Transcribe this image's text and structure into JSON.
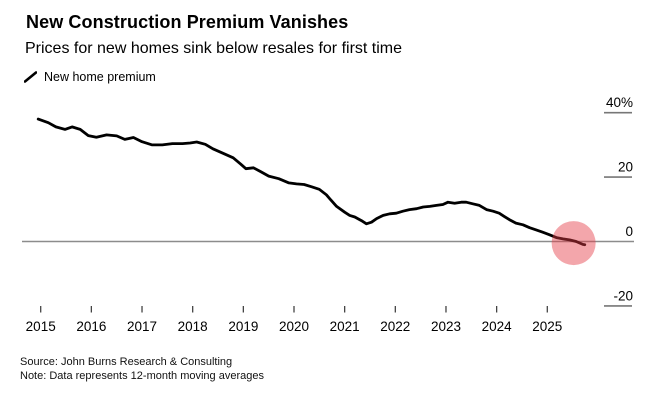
{
  "header": {
    "title": "New Construction Premium Vanishes",
    "subtitle": "Prices for new homes sink below resales for first time"
  },
  "legend": {
    "label": "New home premium",
    "marker": "diagonal-line-swatch"
  },
  "footer": {
    "source": "Source: John Burns Research & Consulting",
    "note": "Note: Data represents 12-month moving averages"
  },
  "colors": {
    "line": "#000000",
    "zero_line": "#8c8c8c",
    "axis_tick": "#444444",
    "y_tick": "#777777",
    "text": "#000000",
    "highlight_fill": "rgba(228,58,69,0.45)"
  },
  "chart_data": {
    "type": "line",
    "series_name": "New home premium",
    "unit": "%",
    "x": [
      2014.95,
      2015.15,
      2015.3,
      2015.48,
      2015.62,
      2015.78,
      2015.94,
      2016.1,
      2016.3,
      2016.5,
      2016.66,
      2016.83,
      2017.0,
      2017.2,
      2017.4,
      2017.6,
      2017.8,
      2017.95,
      2018.08,
      2018.25,
      2018.4,
      2018.6,
      2018.8,
      2018.95,
      2019.05,
      2019.2,
      2019.35,
      2019.5,
      2019.7,
      2019.9,
      2020.05,
      2020.2,
      2020.35,
      2020.5,
      2020.64,
      2020.72,
      2020.84,
      2021.0,
      2021.1,
      2021.2,
      2021.33,
      2021.43,
      2021.53,
      2021.63,
      2021.76,
      2021.89,
      2022.02,
      2022.15,
      2022.28,
      2022.42,
      2022.55,
      2022.68,
      2022.81,
      2022.94,
      2023.04,
      2023.17,
      2023.3,
      2023.4,
      2023.53,
      2023.66,
      2023.8,
      2023.93,
      2024.05,
      2024.15,
      2024.25,
      2024.38,
      2024.52,
      2024.65,
      2024.78,
      2024.91,
      2025.04,
      2025.18,
      2025.31,
      2025.44,
      2025.57,
      2025.7,
      2025.74
    ],
    "y": [
      38.0,
      36.9,
      35.6,
      34.8,
      35.6,
      34.8,
      32.9,
      32.4,
      33.1,
      32.8,
      31.7,
      32.3,
      31.0,
      30.0,
      30.0,
      30.4,
      30.4,
      30.6,
      30.9,
      30.2,
      28.8,
      27.4,
      26.0,
      24.0,
      22.6,
      22.9,
      21.6,
      20.3,
      19.5,
      18.2,
      17.9,
      17.7,
      17.0,
      16.2,
      14.5,
      13.0,
      10.9,
      9.1,
      8.1,
      7.6,
      6.5,
      5.5,
      6.0,
      7.1,
      8.1,
      8.6,
      8.8,
      9.4,
      9.9,
      10.2,
      10.7,
      10.9,
      11.2,
      11.5,
      12.2,
      11.9,
      12.2,
      12.2,
      11.7,
      11.2,
      9.9,
      9.4,
      8.8,
      7.8,
      6.8,
      5.7,
      5.2,
      4.3,
      3.6,
      2.9,
      2.1,
      1.2,
      0.8,
      0.5,
      0.0,
      -0.9,
      -1.0
    ],
    "x_ticks": [
      2015,
      2016,
      2017,
      2018,
      2019,
      2020,
      2021,
      2022,
      2023,
      2024,
      2025
    ],
    "x_tick_labels": [
      "2015",
      "2016",
      "2017",
      "2018",
      "2019",
      "2020",
      "2021",
      "2022",
      "2023",
      "2024",
      "2025"
    ],
    "y_ticks": [
      -20,
      0,
      20,
      40
    ],
    "y_tick_labels": [
      "-20",
      "0",
      "20",
      "40%"
    ],
    "xlim": [
      2014.95,
      2025.9
    ],
    "ylim": [
      -27,
      45
    ],
    "zero_line": true,
    "grid": false,
    "legend_position": "top-left",
    "highlight_point": {
      "x": 2025.52,
      "y": -0.5,
      "shape": "circle",
      "meaning": "premium falls below zero"
    }
  }
}
